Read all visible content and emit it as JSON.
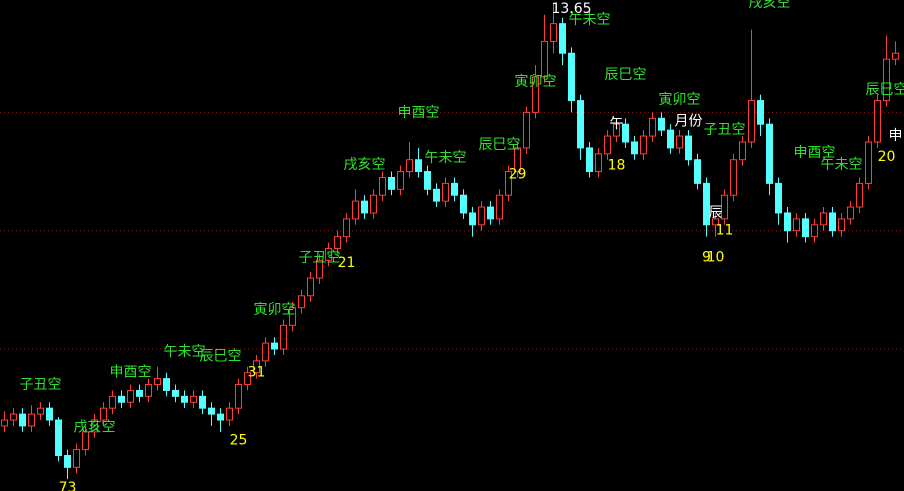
{
  "chart_data": {
    "type": "candlestick",
    "ylim": [
      5.6,
      13.9
    ],
    "yticks": [
      12,
      10,
      8
    ],
    "show_tick_labels": false,
    "grid": true,
    "grid_color": "#8b1a1a",
    "up_color": "#ff3c3c",
    "down_color": "#54ffff",
    "ohlc": [
      [
        6.7,
        6.95,
        6.6,
        6.8
      ],
      [
        6.8,
        7.0,
        6.7,
        6.9
      ],
      [
        6.9,
        7.0,
        6.6,
        6.7
      ],
      [
        6.7,
        7.05,
        6.6,
        6.9
      ],
      [
        6.9,
        7.1,
        6.8,
        7.0
      ],
      [
        7.0,
        7.1,
        6.7,
        6.8
      ],
      [
        6.8,
        6.85,
        6.1,
        6.2
      ],
      [
        6.2,
        6.3,
        5.8,
        6.0
      ],
      [
        6.0,
        6.4,
        5.9,
        6.3
      ],
      [
        6.3,
        6.7,
        6.2,
        6.6
      ],
      [
        6.6,
        6.9,
        6.5,
        6.8
      ],
      [
        6.8,
        7.1,
        6.7,
        7.0
      ],
      [
        7.0,
        7.3,
        6.9,
        7.2
      ],
      [
        7.2,
        7.3,
        7.0,
        7.1
      ],
      [
        7.1,
        7.4,
        7.0,
        7.3
      ],
      [
        7.3,
        7.4,
        7.1,
        7.2
      ],
      [
        7.2,
        7.5,
        7.1,
        7.4
      ],
      [
        7.4,
        7.7,
        7.3,
        7.5
      ],
      [
        7.5,
        7.6,
        7.2,
        7.3
      ],
      [
        7.3,
        7.4,
        7.1,
        7.2
      ],
      [
        7.2,
        7.3,
        7.0,
        7.1
      ],
      [
        7.1,
        7.3,
        7.0,
        7.2
      ],
      [
        7.2,
        7.3,
        6.9,
        7.0
      ],
      [
        7.0,
        7.1,
        6.7,
        6.9
      ],
      [
        6.9,
        7.0,
        6.6,
        6.8
      ],
      [
        6.8,
        7.1,
        6.7,
        7.0
      ],
      [
        7.0,
        7.5,
        6.9,
        7.4
      ],
      [
        7.4,
        7.7,
        7.3,
        7.6
      ],
      [
        7.6,
        7.9,
        7.5,
        7.8
      ],
      [
        7.8,
        8.2,
        7.7,
        8.1
      ],
      [
        8.1,
        8.2,
        7.9,
        8.0
      ],
      [
        8.0,
        8.5,
        7.9,
        8.4
      ],
      [
        8.4,
        8.8,
        8.3,
        8.7
      ],
      [
        8.7,
        9.0,
        8.6,
        8.9
      ],
      [
        8.9,
        9.3,
        8.8,
        9.2
      ],
      [
        9.2,
        9.6,
        9.1,
        9.5
      ],
      [
        9.5,
        9.8,
        9.4,
        9.7
      ],
      [
        9.7,
        10.0,
        9.6,
        9.9
      ],
      [
        9.9,
        10.3,
        9.8,
        10.2
      ],
      [
        10.2,
        10.7,
        10.1,
        10.5
      ],
      [
        10.5,
        10.6,
        10.2,
        10.3
      ],
      [
        10.3,
        10.7,
        10.2,
        10.6
      ],
      [
        10.6,
        11.0,
        10.5,
        10.9
      ],
      [
        10.9,
        11.0,
        10.6,
        10.7
      ],
      [
        10.7,
        11.1,
        10.6,
        11.0
      ],
      [
        11.0,
        11.5,
        10.9,
        11.2
      ],
      [
        11.2,
        11.4,
        10.9,
        11.0
      ],
      [
        11.0,
        11.1,
        10.6,
        10.7
      ],
      [
        10.7,
        10.8,
        10.4,
        10.5
      ],
      [
        10.5,
        10.9,
        10.4,
        10.8
      ],
      [
        10.8,
        10.9,
        10.5,
        10.6
      ],
      [
        10.6,
        10.7,
        10.2,
        10.3
      ],
      [
        10.3,
        10.4,
        9.9,
        10.1
      ],
      [
        10.1,
        10.5,
        10.0,
        10.4
      ],
      [
        10.4,
        10.5,
        10.1,
        10.2
      ],
      [
        10.2,
        10.7,
        10.1,
        10.6
      ],
      [
        10.6,
        11.1,
        10.5,
        11.0
      ],
      [
        11.0,
        11.5,
        10.9,
        11.4
      ],
      [
        11.4,
        12.1,
        11.3,
        12.0
      ],
      [
        12.0,
        12.8,
        11.9,
        12.6
      ],
      [
        12.6,
        13.65,
        12.5,
        13.2
      ],
      [
        13.2,
        13.85,
        13.0,
        13.5
      ],
      [
        13.5,
        13.6,
        12.8,
        13.0
      ],
      [
        13.0,
        13.1,
        12.0,
        12.2
      ],
      [
        12.2,
        12.3,
        11.2,
        11.4
      ],
      [
        11.4,
        11.5,
        10.9,
        11.0
      ],
      [
        11.0,
        11.4,
        10.9,
        11.3
      ],
      [
        11.3,
        11.7,
        11.2,
        11.6
      ],
      [
        11.6,
        11.9,
        11.5,
        11.8
      ],
      [
        11.8,
        11.9,
        11.4,
        11.5
      ],
      [
        11.5,
        11.6,
        11.2,
        11.3
      ],
      [
        11.3,
        11.7,
        11.2,
        11.6
      ],
      [
        11.6,
        12.0,
        11.5,
        11.9
      ],
      [
        11.9,
        12.0,
        11.6,
        11.7
      ],
      [
        11.7,
        11.8,
        11.3,
        11.4
      ],
      [
        11.4,
        11.7,
        11.3,
        11.6
      ],
      [
        11.6,
        11.7,
        11.1,
        11.2
      ],
      [
        11.2,
        11.3,
        10.7,
        10.8
      ],
      [
        10.8,
        10.9,
        9.9,
        10.1
      ],
      [
        10.1,
        10.3,
        9.9,
        10.2
      ],
      [
        10.2,
        10.7,
        10.1,
        10.6
      ],
      [
        10.6,
        11.3,
        10.5,
        11.2
      ],
      [
        11.2,
        11.6,
        11.1,
        11.5
      ],
      [
        11.5,
        13.4,
        11.4,
        12.2
      ],
      [
        12.2,
        12.3,
        11.6,
        11.8
      ],
      [
        11.8,
        11.9,
        10.6,
        10.8
      ],
      [
        10.8,
        10.9,
        10.1,
        10.3
      ],
      [
        10.3,
        10.4,
        9.8,
        10.0
      ],
      [
        10.0,
        10.3,
        9.9,
        10.2
      ],
      [
        10.2,
        10.3,
        9.8,
        9.9
      ],
      [
        9.9,
        10.2,
        9.8,
        10.1
      ],
      [
        10.1,
        10.4,
        10.0,
        10.3
      ],
      [
        10.3,
        10.4,
        9.9,
        10.0
      ],
      [
        10.0,
        10.3,
        9.9,
        10.2
      ],
      [
        10.2,
        10.5,
        10.1,
        10.4
      ],
      [
        10.4,
        10.9,
        10.3,
        10.8
      ],
      [
        10.8,
        11.6,
        10.7,
        11.5
      ],
      [
        11.5,
        12.3,
        11.4,
        12.2
      ],
      [
        12.2,
        13.3,
        12.1,
        12.9
      ],
      [
        12.9,
        13.2,
        12.8,
        13.0
      ]
    ],
    "annotations": [
      {
        "text": "子丑空",
        "index": 4,
        "price": 7.39,
        "color": "#2ee02e"
      },
      {
        "text": "戌亥空",
        "index": 10,
        "price": 6.67,
        "color": "#2ee02e"
      },
      {
        "text": "申酉空",
        "index": 14,
        "price": 7.6,
        "color": "#2ee02e"
      },
      {
        "text": "午未空",
        "index": 20,
        "price": 7.95,
        "color": "#2ee02e"
      },
      {
        "text": "辰巳空",
        "index": 24,
        "price": 7.87,
        "color": "#2ee02e"
      },
      {
        "text": "寅卯空",
        "index": 30,
        "price": 8.66,
        "color": "#2ee02e"
      },
      {
        "text": "子丑空",
        "index": 35,
        "price": 9.54,
        "color": "#2ee02e"
      },
      {
        "text": "戌亥空",
        "index": 40,
        "price": 11.11,
        "color": "#2ee02e"
      },
      {
        "text": "申酉空",
        "index": 46,
        "price": 11.99,
        "color": "#2ee02e"
      },
      {
        "text": "午未空",
        "index": 49,
        "price": 11.23,
        "color": "#2ee02e"
      },
      {
        "text": "辰巳空",
        "index": 55,
        "price": 11.45,
        "color": "#2ee02e"
      },
      {
        "text": "寅卯空",
        "index": 59,
        "price": 12.51,
        "color": "#2ee02e"
      },
      {
        "text": "午未空",
        "index": 65,
        "price": 13.56,
        "color": "#2ee02e"
      },
      {
        "text": "辰巳空",
        "index": 69,
        "price": 12.63,
        "color": "#2ee02e"
      },
      {
        "text": "寅卯空",
        "index": 75,
        "price": 12.21,
        "color": "#2ee02e"
      },
      {
        "text": "子丑空",
        "index": 80,
        "price": 11.7,
        "color": "#2ee02e"
      },
      {
        "text": "戌亥空",
        "index": 85,
        "price": 13.85,
        "color": "#2ee02e"
      },
      {
        "text": "申酉空",
        "index": 90,
        "price": 11.31,
        "color": "#2ee02e"
      },
      {
        "text": "午未空",
        "index": 93,
        "price": 11.11,
        "color": "#2ee02e"
      },
      {
        "text": "辰巳空",
        "index": 98,
        "price": 12.38,
        "color": "#2ee02e"
      },
      {
        "text": "13.65",
        "index": 63,
        "price": 13.75,
        "color": "#ffffff"
      },
      {
        "text": "申",
        "index": 99,
        "price": 11.6,
        "color": "#ffffff"
      },
      {
        "text": "20",
        "index": 98,
        "price": 11.25,
        "color": "#ffff00"
      },
      {
        "text": "辰",
        "index": 79,
        "price": 10.3,
        "color": "#ffffff"
      },
      {
        "text": "11",
        "index": 80,
        "price": 10.0,
        "color": "#ffff00"
      },
      {
        "text": "9",
        "index": 78,
        "price": 9.55,
        "color": "#ffff00"
      },
      {
        "text": "10",
        "index": 79,
        "price": 9.55,
        "color": "#ffff00"
      },
      {
        "text": "午",
        "index": 68,
        "price": 11.8,
        "color": "#ffffff"
      },
      {
        "text": "18",
        "index": 68,
        "price": 11.1,
        "color": "#ffff00"
      },
      {
        "text": "月份",
        "index": 76,
        "price": 11.85,
        "color": "#ffffff"
      },
      {
        "text": "29",
        "index": 57,
        "price": 10.95,
        "color": "#ffff00"
      },
      {
        "text": "21",
        "index": 38,
        "price": 9.45,
        "color": "#ffff00"
      },
      {
        "text": "31",
        "index": 28,
        "price": 7.6,
        "color": "#ffff00"
      },
      {
        "text": "25",
        "index": 26,
        "price": 6.45,
        "color": "#ffff00"
      },
      {
        "text": "73",
        "index": 7,
        "price": 5.65,
        "color": "#ffff00"
      }
    ]
  }
}
